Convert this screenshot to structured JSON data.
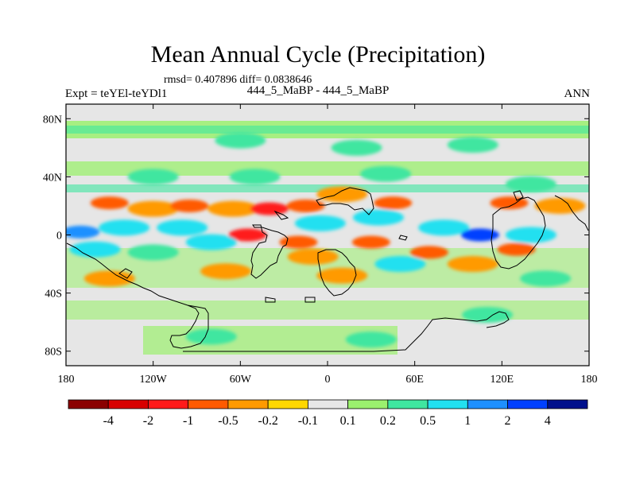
{
  "figure": {
    "title": "Mean Annual Cycle (Precipitation)",
    "stats": "rmsd= 0.407896 diff= 0.0838646",
    "left_label": "Expt = teYEl-teYDl1",
    "center_label": "444_5_MaBP - 444_5_MaBP",
    "right_label": "ANN"
  },
  "axes": {
    "x_ticks": [
      "180",
      "120W",
      "60W",
      "0",
      "60E",
      "120E",
      "180"
    ],
    "y_ticks": [
      "80N",
      "40N",
      "0",
      "40S",
      "80S"
    ]
  },
  "colorbar": {
    "labels": [
      "-4",
      "-2",
      "-1",
      "-0.5",
      "-0.2",
      "-0.1",
      "0.1",
      "0.2",
      "0.5",
      "1",
      "2",
      "4"
    ],
    "colors": [
      "#8b0000",
      "#d80000",
      "#ff1a1a",
      "#ff5a00",
      "#ff9a00",
      "#ffd700",
      "#e6e6e6",
      "#9bf06e",
      "#3fe6a0",
      "#22e0f0",
      "#1e90ff",
      "#0040ff",
      "#00108c"
    ]
  },
  "chart_data": {
    "type": "heatmap",
    "title": "Mean Annual Cycle (Precipitation)",
    "subtitle": "444_5_MaBP - 444_5_MaBP",
    "variable": "Precipitation difference",
    "season": "ANN",
    "rmsd": 0.407896,
    "diff": 0.0838646,
    "x_range": [
      -180,
      180
    ],
    "y_range": [
      -90,
      90
    ],
    "contour_levels": [
      -4,
      -2,
      -1,
      -0.5,
      -0.2,
      -0.1,
      0.1,
      0.2,
      0.5,
      1,
      2,
      4
    ],
    "features": [
      {
        "lon": -150,
        "lat": 22,
        "level": -1
      },
      {
        "lon": -120,
        "lat": 18,
        "level": -0.5
      },
      {
        "lon": -95,
        "lat": 20,
        "level": -1
      },
      {
        "lon": -65,
        "lat": 18,
        "level": -0.5
      },
      {
        "lon": -40,
        "lat": 18,
        "level": -2
      },
      {
        "lon": -15,
        "lat": 20,
        "level": -1
      },
      {
        "lon": 10,
        "lat": 28,
        "level": -0.5
      },
      {
        "lon": 45,
        "lat": 22,
        "level": -1
      },
      {
        "lon": 125,
        "lat": 22,
        "level": -1
      },
      {
        "lon": 160,
        "lat": 20,
        "level": -0.5
      },
      {
        "lon": -55,
        "lat": 0,
        "level": -2
      },
      {
        "lon": -20,
        "lat": -5,
        "level": -1
      },
      {
        "lon": 30,
        "lat": -5,
        "level": -1
      },
      {
        "lon": -10,
        "lat": -15,
        "level": -0.5
      },
      {
        "lon": 70,
        "lat": -12,
        "level": -1
      },
      {
        "lon": 100,
        "lat": -20,
        "level": -0.5
      },
      {
        "lon": -70,
        "lat": -25,
        "level": -0.5
      },
      {
        "lon": 10,
        "lat": -28,
        "level": -0.5
      },
      {
        "lon": -150,
        "lat": -30,
        "level": -0.5
      },
      {
        "lon": 130,
        "lat": -10,
        "level": -1
      },
      {
        "lon": -170,
        "lat": 2,
        "level": 1
      },
      {
        "lon": -140,
        "lat": 5,
        "level": 0.5
      },
      {
        "lon": -100,
        "lat": 5,
        "level": 0.5
      },
      {
        "lon": -5,
        "lat": 8,
        "level": 0.5
      },
      {
        "lon": 35,
        "lat": 12,
        "level": 0.5
      },
      {
        "lon": 80,
        "lat": 5,
        "level": 0.5
      },
      {
        "lon": 105,
        "lat": 0,
        "level": 2
      },
      {
        "lon": 140,
        "lat": 0,
        "level": 0.5
      },
      {
        "lon": -80,
        "lat": -5,
        "level": 0.5
      },
      {
        "lon": -120,
        "lat": -12,
        "level": 0.2
      },
      {
        "lon": 50,
        "lat": -20,
        "level": 0.5
      },
      {
        "lon": 150,
        "lat": -30,
        "level": 0.2
      },
      {
        "lon": -160,
        "lat": -10,
        "level": 0.5
      },
      {
        "lon": -60,
        "lat": 65,
        "level": 0.2
      },
      {
        "lon": 20,
        "lat": 60,
        "level": 0.2
      },
      {
        "lon": 100,
        "lat": 62,
        "level": 0.2
      },
      {
        "lon": -120,
        "lat": 40,
        "level": 0.2
      },
      {
        "lon": 40,
        "lat": 42,
        "level": 0.2
      },
      {
        "lon": 140,
        "lat": 35,
        "level": 0.2
      },
      {
        "lon": -50,
        "lat": 40,
        "level": 0.2
      },
      {
        "lon": -80,
        "lat": -70,
        "level": 0.2
      },
      {
        "lon": 30,
        "lat": -72,
        "level": 0.2
      },
      {
        "lon": 110,
        "lat": -55,
        "level": 0.2
      }
    ]
  }
}
